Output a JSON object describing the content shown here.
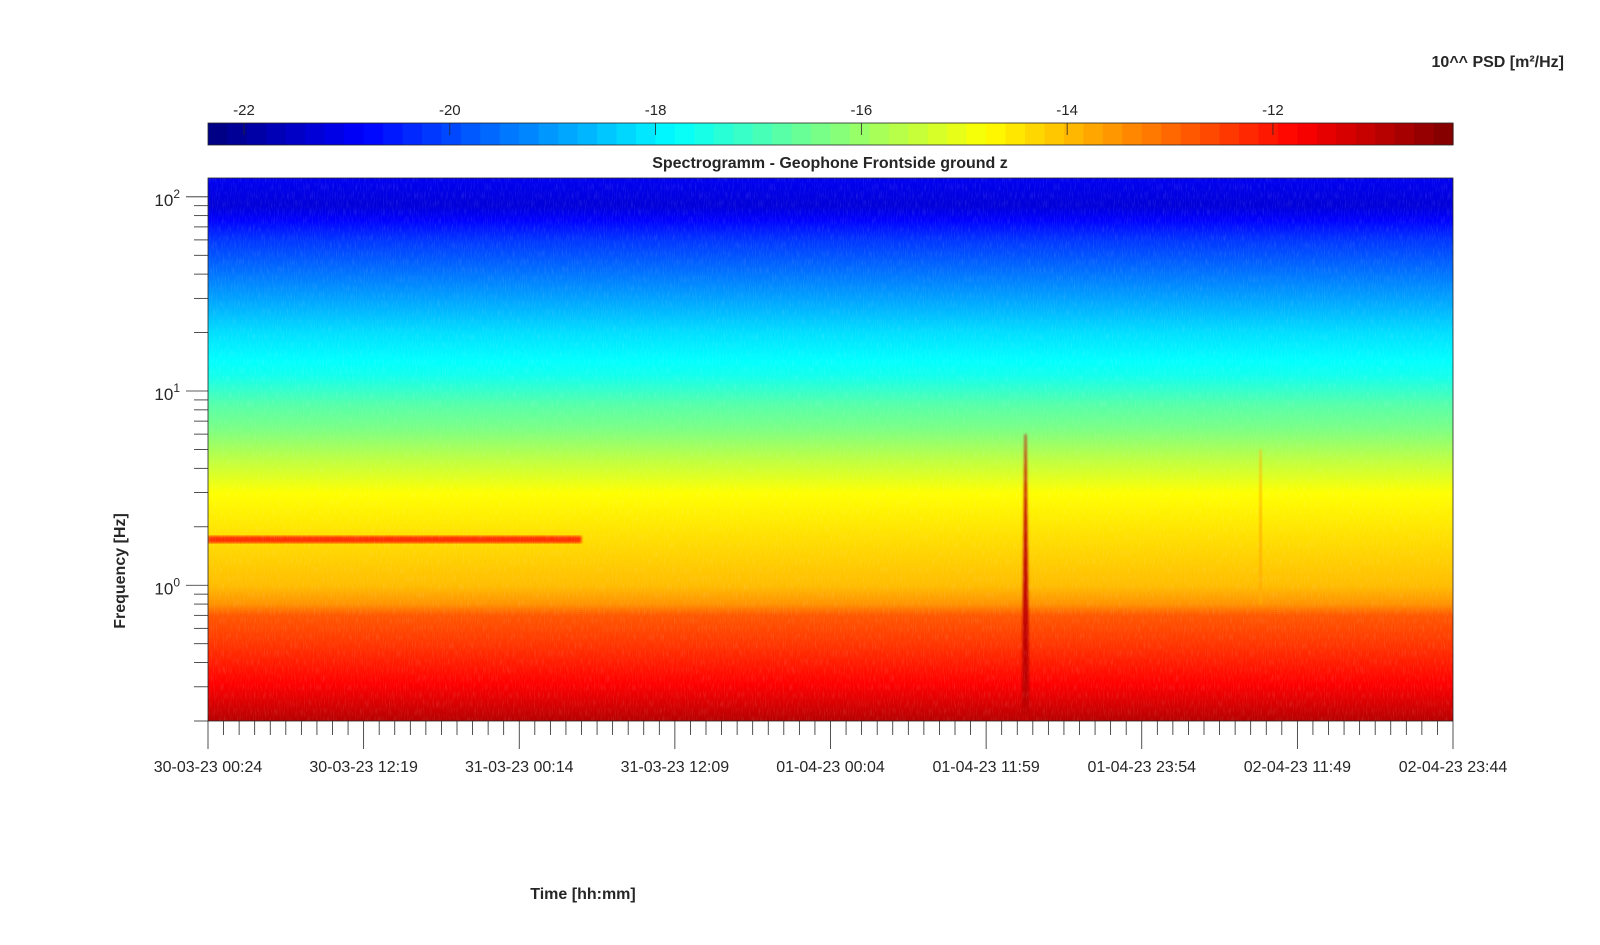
{
  "chart_data": {
    "type": "heatmap",
    "title": "Spectrogramm - Geophone Frontside ground z",
    "xlabel": "Time [hh:mm]",
    "ylabel": "Frequency [Hz]",
    "x_tick_labels": [
      "30-03-23 00:24",
      "30-03-23 12:19",
      "31-03-23 00:14",
      "31-03-23 12:09",
      "01-04-23 00:04",
      "01-04-23 11:59",
      "01-04-23 23:54",
      "02-04-23 11:49",
      "02-04-23 23:44"
    ],
    "y_scale": "log",
    "y_tick_labels": [
      {
        "base": "10",
        "exp": "0"
      },
      {
        "base": "10",
        "exp": "1"
      },
      {
        "base": "10",
        "exp": "2"
      }
    ],
    "ylim": [
      0.2,
      125
    ],
    "colorbar": {
      "label": "10^^ PSD [m²/Hz]",
      "ticks": [
        "-22",
        "-20",
        "-18",
        "-16",
        "-14",
        "-12"
      ],
      "range": [
        -22.35,
        -10.25
      ],
      "colormap": "jet",
      "levels": 64
    },
    "features": [
      {
        "name": "",
        "type": "horizontal_line",
        "frequency_hz": 1.72,
        "time_from": "30-03-23 00:24",
        "time_to": "31-03-23 05:00",
        "psd_exp": -12.3
      },
      {
        "name": "",
        "type": "vertical_spike",
        "time": "01-04-23 15:00",
        "freq_from_hz": 0.2,
        "freq_to_hz": 6,
        "psd_exp": -11.0
      },
      {
        "name": "",
        "type": "vertical_spike",
        "time": "02-04-23 09:00",
        "freq_from_hz": 0.8,
        "freq_to_hz": 5,
        "psd_exp": -13.8
      }
    ]
  }
}
